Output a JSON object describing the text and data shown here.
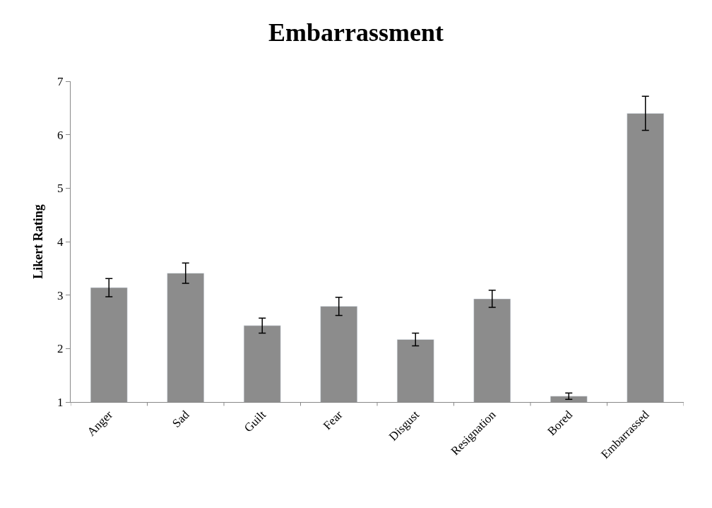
{
  "chart_data": {
    "type": "bar",
    "title": "Embarrassment",
    "ylabel": "Likert Rating",
    "categories": [
      "Anger",
      "Sad",
      "Guilt",
      "Fear",
      "Disgust",
      "Resignation",
      "Bored",
      "Embarrassed"
    ],
    "values": [
      3.14,
      3.41,
      2.43,
      2.79,
      2.17,
      2.93,
      1.11,
      6.4
    ],
    "errors": [
      0.17,
      0.19,
      0.14,
      0.17,
      0.12,
      0.16,
      0.06,
      0.32
    ],
    "color": "#8c8c8c",
    "ylim": [
      1,
      7
    ],
    "yticks": [
      1,
      2,
      3,
      4,
      5,
      6,
      7
    ],
    "legend": false
  }
}
